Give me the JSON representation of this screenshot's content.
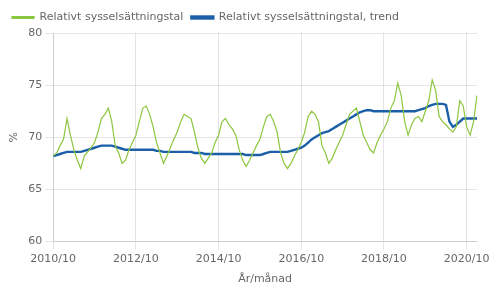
{
  "chart_data": {
    "type": "line",
    "xlabel": "År/månad",
    "ylabel": "%",
    "categories": [
      "2010/10",
      null,
      null,
      null,
      null,
      null,
      null,
      null,
      null,
      null,
      null,
      null,
      null,
      null,
      null,
      null,
      null,
      null,
      null,
      null,
      null,
      null,
      null,
      null,
      "2012/10",
      null,
      null,
      null,
      null,
      null,
      null,
      null,
      null,
      null,
      null,
      null,
      null,
      null,
      null,
      null,
      null,
      null,
      null,
      null,
      null,
      null,
      null,
      null,
      "2014/10",
      null,
      null,
      null,
      null,
      null,
      null,
      null,
      null,
      null,
      null,
      null,
      null,
      null,
      null,
      null,
      null,
      null,
      null,
      null,
      null,
      null,
      null,
      null,
      "2016/10",
      null,
      null,
      null,
      null,
      null,
      null,
      null,
      null,
      null,
      null,
      null,
      null,
      null,
      null,
      null,
      null,
      null,
      null,
      null,
      null,
      null,
      null,
      null,
      "2018/10",
      null,
      null,
      null,
      null,
      null,
      null,
      null,
      null,
      null,
      null,
      null,
      null,
      null,
      null,
      null,
      null,
      null,
      null,
      null,
      null,
      null,
      null,
      null,
      "2020/10",
      null,
      null,
      null
    ],
    "series": [
      {
        "name": "Relativt sysselsättningstal",
        "color": "#8dc63f",
        "values": [
          68.2,
          68.5,
          69.2,
          69.8,
          71.8,
          70.2,
          68.8,
          67.8,
          67.0,
          68.2,
          68.6,
          69.0,
          69.5,
          70.5,
          71.8,
          72.2,
          72.8,
          71.5,
          69.2,
          68.5,
          67.5,
          67.8,
          68.8,
          69.5,
          70.2,
          71.5,
          72.8,
          73.0,
          72.2,
          71.0,
          69.5,
          68.5,
          67.5,
          68.2,
          69.0,
          69.8,
          70.5,
          71.5,
          72.2,
          72.0,
          71.8,
          70.5,
          69.0,
          68.0,
          67.5,
          68.0,
          68.5,
          69.5,
          70.2,
          71.5,
          71.8,
          71.2,
          70.8,
          70.2,
          68.8,
          67.8,
          67.2,
          67.8,
          68.5,
          69.2,
          69.8,
          71.0,
          72.0,
          72.2,
          71.5,
          70.5,
          68.5,
          67.5,
          67.0,
          67.5,
          68.2,
          68.8,
          69.5,
          70.5,
          72.0,
          72.5,
          72.2,
          71.5,
          69.2,
          68.5,
          67.5,
          68.0,
          68.8,
          69.5,
          70.2,
          71.2,
          72.2,
          72.5,
          72.8,
          71.5,
          70.2,
          69.5,
          68.8,
          68.5,
          69.5,
          70.2,
          70.8,
          71.5,
          72.8,
          73.5,
          75.2,
          74.0,
          71.5,
          70.2,
          71.2,
          71.8,
          72.0,
          71.5,
          72.5,
          73.5,
          75.5,
          74.5,
          72.0,
          71.5,
          71.2,
          70.8,
          70.5,
          71.0,
          73.5,
          73.0,
          71.0,
          70.2,
          71.5,
          74.0
        ]
      },
      {
        "name": "Relativt sysselsättningstal, trend",
        "color": "#1a5fa8",
        "values": [
          68.2,
          68.3,
          68.4,
          68.5,
          68.6,
          68.6,
          68.6,
          68.6,
          68.6,
          68.7,
          68.8,
          68.9,
          69.0,
          69.1,
          69.2,
          69.2,
          69.2,
          69.2,
          69.1,
          69.0,
          68.9,
          68.8,
          68.8,
          68.8,
          68.8,
          68.8,
          68.8,
          68.8,
          68.8,
          68.8,
          68.7,
          68.7,
          68.6,
          68.6,
          68.6,
          68.6,
          68.6,
          68.6,
          68.6,
          68.6,
          68.6,
          68.5,
          68.5,
          68.5,
          68.4,
          68.4,
          68.4,
          68.4,
          68.4,
          68.4,
          68.4,
          68.4,
          68.4,
          68.4,
          68.4,
          68.4,
          68.3,
          68.3,
          68.3,
          68.3,
          68.3,
          68.4,
          68.5,
          68.6,
          68.6,
          68.6,
          68.6,
          68.6,
          68.6,
          68.7,
          68.8,
          68.9,
          69.0,
          69.2,
          69.5,
          69.8,
          70.0,
          70.2,
          70.4,
          70.5,
          70.6,
          70.8,
          71.0,
          71.2,
          71.4,
          71.6,
          71.8,
          72.0,
          72.2,
          72.4,
          72.5,
          72.6,
          72.6,
          72.5,
          72.5,
          72.5,
          72.5,
          72.5,
          72.5,
          72.5,
          72.5,
          72.5,
          72.5,
          72.5,
          72.5,
          72.5,
          72.6,
          72.7,
          72.8,
          73.0,
          73.1,
          73.2,
          73.2,
          73.2,
          73.1,
          71.5,
          71.0,
          71.2,
          71.5,
          71.8,
          71.8,
          71.8,
          71.8,
          71.8
        ]
      }
    ],
    "ylim": [
      60,
      80
    ],
    "yticks": [
      60,
      65,
      70,
      75,
      80
    ],
    "grid": true,
    "legend": "top"
  }
}
